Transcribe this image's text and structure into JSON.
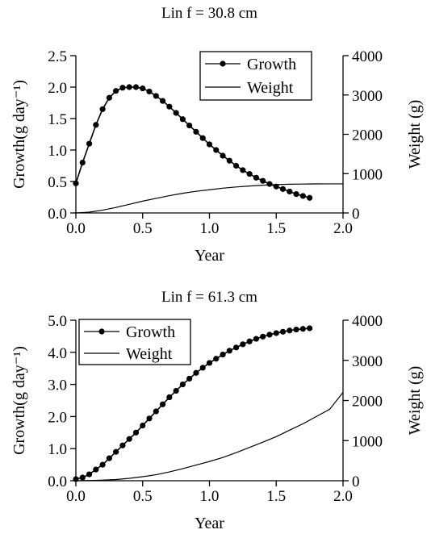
{
  "chart_data": [
    {
      "type": "line",
      "title": "Lin f = 30.8 cm",
      "xlabel": "Year",
      "ylabel_left": "Growth(g day⁻¹)",
      "ylabel_right": "Weight (g)",
      "xlim": [
        0,
        2.0
      ],
      "ylim_left": [
        0,
        2.5
      ],
      "ylim_right": [
        0,
        4000
      ],
      "xticks": [
        "0.0",
        "0.5",
        "1.0",
        "1.5",
        "2.0"
      ],
      "yticks_left": [
        "0.0",
        "0.5",
        "1.0",
        "1.5",
        "2.0",
        "2.5"
      ],
      "yticks_right": [
        "0",
        "1000",
        "2000",
        "3000",
        "4000"
      ],
      "legend_position": "top-right",
      "grid": false,
      "series": [
        {
          "name": "Growth",
          "axis": "left",
          "style": "line-with-filled-circles",
          "x": [
            0.0,
            0.05,
            0.1,
            0.15,
            0.2,
            0.25,
            0.3,
            0.35,
            0.4,
            0.45,
            0.5,
            0.55,
            0.6,
            0.65,
            0.7,
            0.75,
            0.8,
            0.85,
            0.9,
            0.95,
            1.0,
            1.05,
            1.1,
            1.15,
            1.2,
            1.25,
            1.3,
            1.35,
            1.4,
            1.45,
            1.5,
            1.55,
            1.6,
            1.65,
            1.7,
            1.75
          ],
          "y": [
            0.47,
            0.8,
            1.1,
            1.4,
            1.65,
            1.83,
            1.94,
            1.99,
            2.0,
            2.0,
            1.98,
            1.93,
            1.86,
            1.78,
            1.69,
            1.59,
            1.49,
            1.39,
            1.29,
            1.19,
            1.09,
            1.0,
            0.91,
            0.83,
            0.75,
            0.68,
            0.62,
            0.56,
            0.51,
            0.46,
            0.42,
            0.38,
            0.34,
            0.3,
            0.27,
            0.24
          ]
        },
        {
          "name": "Weight",
          "axis": "right",
          "style": "line",
          "x": [
            0.0,
            0.1,
            0.2,
            0.3,
            0.4,
            0.5,
            0.6,
            0.7,
            0.8,
            0.9,
            1.0,
            1.1,
            1.2,
            1.3,
            1.4,
            1.5,
            1.6,
            1.7,
            1.8,
            1.9,
            2.0
          ],
          "y": [
            0,
            20,
            70,
            140,
            220,
            300,
            370,
            440,
            500,
            550,
            590,
            630,
            660,
            685,
            705,
            720,
            730,
            735,
            738,
            740,
            740
          ]
        }
      ]
    },
    {
      "type": "line",
      "title": "Lin f = 61.3 cm",
      "xlabel": "Year",
      "ylabel_left": "Growth(g day⁻¹)",
      "ylabel_right": "Weight (g)",
      "xlim": [
        0,
        2.0
      ],
      "ylim_left": [
        0,
        5.0
      ],
      "ylim_right": [
        0,
        4000
      ],
      "xticks": [
        "0.0",
        "0.5",
        "1.0",
        "1.5",
        "2.0"
      ],
      "yticks_left": [
        "0.0",
        "1.0",
        "2.0",
        "3.0",
        "4.0",
        "5.0"
      ],
      "yticks_right": [
        "0",
        "1000",
        "2000",
        "3000",
        "4000"
      ],
      "legend_position": "top-left",
      "grid": false,
      "series": [
        {
          "name": "Growth",
          "axis": "left",
          "style": "line-with-filled-circles",
          "x": [
            0.0,
            0.05,
            0.1,
            0.15,
            0.2,
            0.25,
            0.3,
            0.35,
            0.4,
            0.45,
            0.5,
            0.55,
            0.6,
            0.65,
            0.7,
            0.75,
            0.8,
            0.85,
            0.9,
            0.95,
            1.0,
            1.05,
            1.1,
            1.15,
            1.2,
            1.25,
            1.3,
            1.35,
            1.4,
            1.45,
            1.5,
            1.55,
            1.6,
            1.65,
            1.7,
            1.75
          ],
          "y": [
            0.05,
            0.1,
            0.2,
            0.35,
            0.5,
            0.7,
            0.9,
            1.1,
            1.3,
            1.5,
            1.72,
            1.94,
            2.16,
            2.38,
            2.6,
            2.8,
            3.0,
            3.18,
            3.36,
            3.52,
            3.67,
            3.8,
            3.93,
            4.05,
            4.15,
            4.25,
            4.34,
            4.42,
            4.49,
            4.55,
            4.6,
            4.64,
            4.68,
            4.71,
            4.73,
            4.75
          ]
        },
        {
          "name": "Weight",
          "axis": "right",
          "style": "line",
          "x": [
            0.0,
            0.1,
            0.2,
            0.3,
            0.4,
            0.5,
            0.6,
            0.7,
            0.8,
            0.9,
            1.0,
            1.1,
            1.2,
            1.3,
            1.4,
            1.5,
            1.6,
            1.7,
            1.8,
            1.9,
            2.0
          ],
          "y": [
            0,
            5,
            15,
            30,
            60,
            100,
            150,
            220,
            300,
            390,
            480,
            580,
            700,
            830,
            960,
            1100,
            1260,
            1420,
            1600,
            1780,
            2200
          ]
        }
      ]
    }
  ]
}
